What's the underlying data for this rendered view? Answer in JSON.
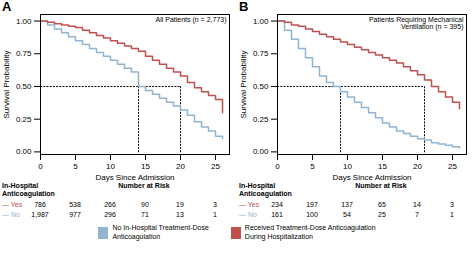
{
  "chart_data": [
    {
      "type": "step",
      "panel_label": "A",
      "title": "All Patients (n = 2,773)",
      "x_label": "Days Since Admission",
      "y_label": "Survival Probability",
      "x": [
        0,
        1,
        2,
        3,
        4,
        5,
        6,
        7,
        8,
        9,
        10,
        11,
        12,
        13,
        14,
        15,
        16,
        17,
        18,
        19,
        20,
        21,
        22,
        23,
        24,
        25,
        26
      ],
      "series": [
        {
          "name": "No In-Hospital Treatment-Dose\nAnticoagulation",
          "color": "#92b4d0",
          "values": [
            1.0,
            0.97,
            0.94,
            0.91,
            0.88,
            0.85,
            0.82,
            0.79,
            0.76,
            0.73,
            0.7,
            0.67,
            0.64,
            0.61,
            0.5,
            0.47,
            0.44,
            0.41,
            0.38,
            0.35,
            0.32,
            0.28,
            0.23,
            0.19,
            0.16,
            0.12,
            0.1
          ]
        },
        {
          "name": "Received Treatment-Dose Anticoagulation\nDuring Hospitalization",
          "color": "#c0504d",
          "values": [
            1.0,
            0.99,
            0.98,
            0.97,
            0.96,
            0.95,
            0.93,
            0.91,
            0.89,
            0.87,
            0.85,
            0.83,
            0.81,
            0.79,
            0.77,
            0.73,
            0.7,
            0.67,
            0.64,
            0.61,
            0.58,
            0.53,
            0.49,
            0.46,
            0.43,
            0.4,
            0.3
          ]
        }
      ],
      "reference_lines": {
        "line_style": "dotted",
        "color": "black",
        "segments": [
          {
            "x": [
              0,
              20
            ],
            "y": [
              0.5,
              0.5
            ]
          },
          {
            "x": [
              14,
              14
            ],
            "y": [
              0,
              0.5
            ]
          },
          {
            "x": [
              20,
              20
            ],
            "y": [
              0,
              0.5
            ]
          }
        ]
      },
      "at_risk": {
        "title": "Number at Risk",
        "group_label": "In-Hospital\nAnticoagulation",
        "x": [
          0,
          5,
          10,
          15,
          20,
          25
        ],
        "rows": [
          {
            "label": "— Yes",
            "color": "#c0504d",
            "values": [
              786,
              538,
              266,
              90,
              19,
              3
            ]
          },
          {
            "label": "— No",
            "color": "#92b4d0",
            "values": [
              1987,
              977,
              296,
              71,
              13,
              1
            ],
            "value_labels": [
              "1,987",
              "977",
              "296",
              "71",
              "13",
              "1"
            ]
          }
        ]
      },
      "xlim": [
        0,
        27
      ],
      "xticks": [
        0,
        5,
        10,
        15,
        20,
        25
      ],
      "ylim": [
        -0.02,
        1.05
      ],
      "yticks": [
        {
          "value": 0.0,
          "label": "0.00"
        },
        0.25,
        {
          "value": 0.5,
          "label": "0.50"
        },
        0.75,
        {
          "value": 1.0,
          "label": "1.00"
        }
      ],
      "legend": "bottom"
    },
    {
      "type": "step",
      "panel_label": "B",
      "title": "Patients Requiring Mechanical\nVentilation (n = 395)",
      "x_label": "Days Since Admission",
      "y_label": "Survival Probability",
      "x": [
        0,
        1,
        2,
        3,
        4,
        5,
        6,
        7,
        8,
        9,
        10,
        11,
        12,
        13,
        14,
        15,
        16,
        17,
        18,
        19,
        20,
        21,
        22,
        23,
        24,
        25,
        26
      ],
      "series": [
        {
          "name": "No In-Hospital Treatment-Dose\nAnticoagulation",
          "color": "#92b4d0",
          "values": [
            1.0,
            0.93,
            0.86,
            0.79,
            0.72,
            0.65,
            0.58,
            0.53,
            0.5,
            0.46,
            0.42,
            0.38,
            0.34,
            0.3,
            0.26,
            0.22,
            0.19,
            0.16,
            0.14,
            0.12,
            0.1,
            0.09,
            0.07,
            0.06,
            0.05,
            0.04,
            0.03
          ]
        },
        {
          "name": "Received Treatment-Dose Anticoagulation\nDuring Hospitalization",
          "color": "#c0504d",
          "values": [
            1.0,
            0.99,
            0.97,
            0.96,
            0.94,
            0.92,
            0.9,
            0.88,
            0.86,
            0.84,
            0.82,
            0.8,
            0.78,
            0.76,
            0.74,
            0.72,
            0.7,
            0.68,
            0.65,
            0.62,
            0.59,
            0.55,
            0.5,
            0.46,
            0.42,
            0.38,
            0.33
          ]
        }
      ],
      "reference_lines": {
        "line_style": "dotted",
        "color": "black",
        "segments": [
          {
            "x": [
              0,
              21
            ],
            "y": [
              0.5,
              0.5
            ]
          },
          {
            "x": [
              9,
              9
            ],
            "y": [
              0,
              0.5
            ]
          },
          {
            "x": [
              21,
              21
            ],
            "y": [
              0,
              0.5
            ]
          }
        ]
      },
      "at_risk": {
        "title": "Number at Risk",
        "group_label": "In-Hospital\nAnticoagulation",
        "x": [
          0,
          5,
          10,
          15,
          20,
          25
        ],
        "rows": [
          {
            "label": "— Yes",
            "color": "#c0504d",
            "values": [
              234,
              197,
              137,
              65,
              14,
              3
            ]
          },
          {
            "label": "— No",
            "color": "#92b4d0",
            "values": [
              161,
              100,
              54,
              25,
              7,
              1
            ]
          }
        ]
      },
      "xlim": [
        0,
        27
      ],
      "xticks": [
        0,
        5,
        10,
        15,
        20,
        25
      ],
      "ylim": [
        -0.02,
        1.05
      ],
      "yticks": [
        {
          "value": 0.0,
          "label": "0.00"
        },
        0.25,
        {
          "value": 0.5,
          "label": "0.50"
        },
        0.75,
        {
          "value": 1.0,
          "label": "1.00"
        }
      ],
      "legend": "bottom"
    }
  ]
}
